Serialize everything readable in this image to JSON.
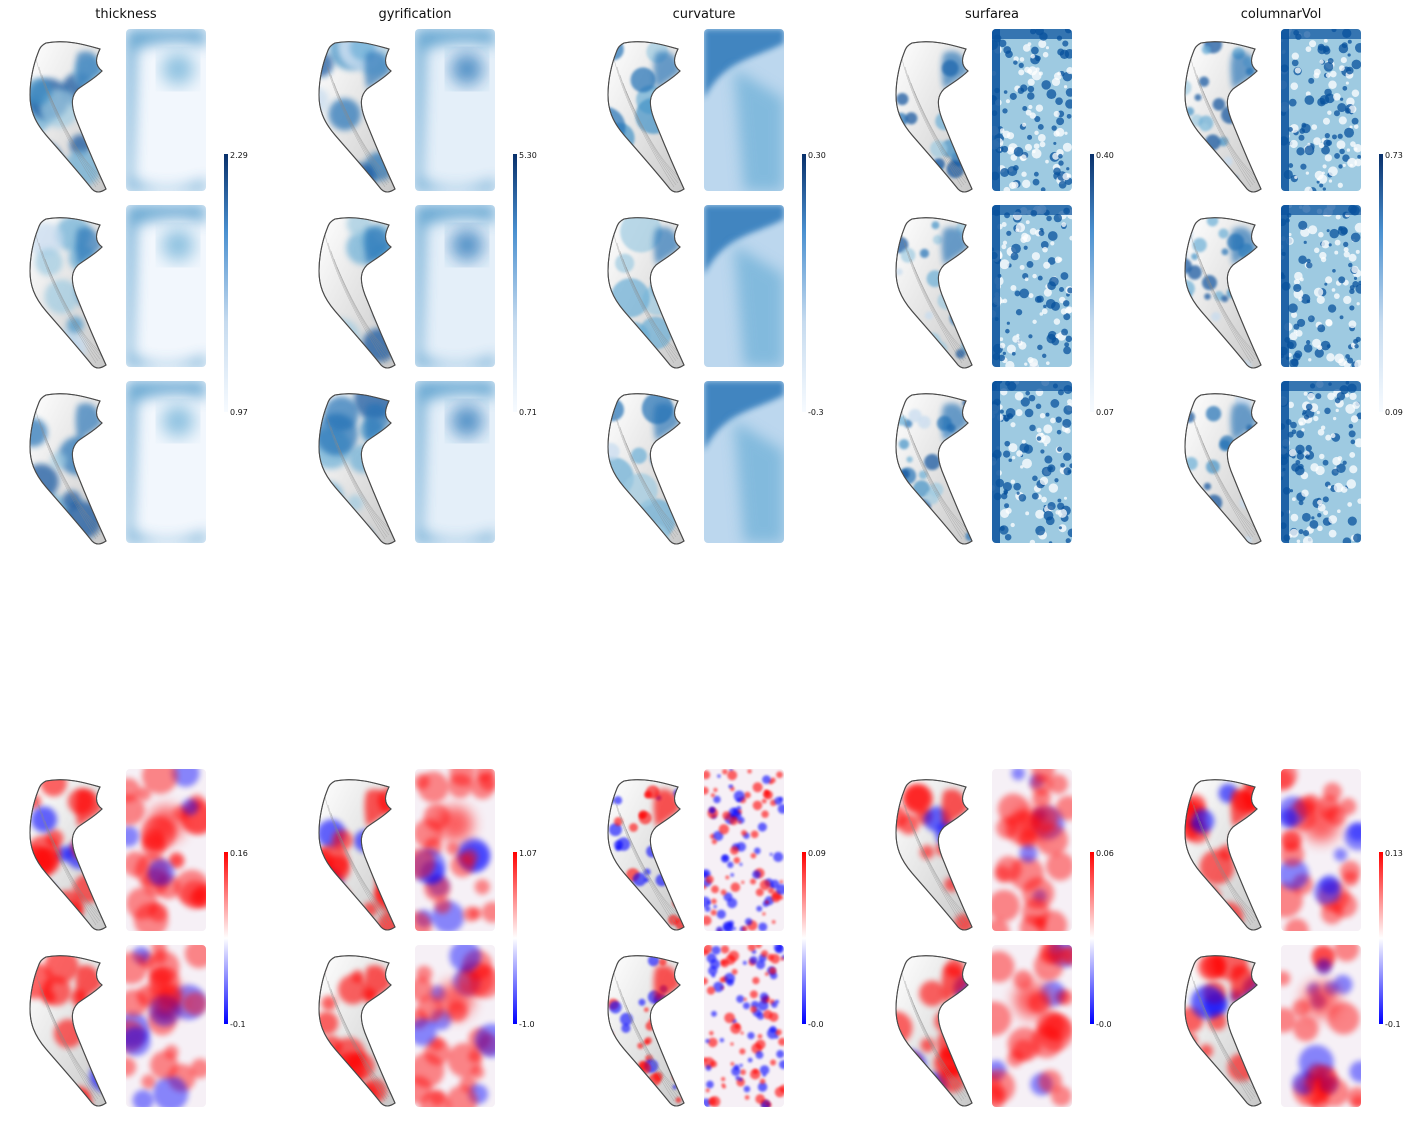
{
  "figure": {
    "columns": [
      {
        "key": "thickness",
        "title": "thickness",
        "blue_colorbar": {
          "max": "2.29",
          "min": "0.97"
        },
        "diff_colorbar": {
          "max": "0.16",
          "min": "-0.1"
        }
      },
      {
        "key": "gyrification",
        "title": "gyrification",
        "blue_colorbar": {
          "max": "5.30",
          "min": "0.71"
        },
        "diff_colorbar": {
          "max": "1.07",
          "min": "-1.0"
        }
      },
      {
        "key": "curvature",
        "title": "curvature",
        "blue_colorbar": {
          "max": "0.30",
          "min": "-0.3"
        },
        "diff_colorbar": {
          "max": "0.09",
          "min": "-0.0"
        }
      },
      {
        "key": "surfarea",
        "title": "surfarea",
        "blue_colorbar": {
          "max": "0.40",
          "min": "0.07"
        },
        "diff_colorbar": {
          "max": "0.06",
          "min": "-0.0"
        }
      },
      {
        "key": "columnarVol",
        "title": "columnarVol",
        "blue_colorbar": {
          "max": "0.73",
          "min": "0.09"
        },
        "diff_colorbar": {
          "max": "0.13",
          "min": "-0.1"
        }
      }
    ],
    "blue_rows": 3,
    "diff_rows": 2,
    "colors": {
      "blue_high": "#08306b",
      "blue_mid": "#4a90d0",
      "blue_low": "#f7fbff",
      "red_high": "#ff0000",
      "red_low": "#0000ff",
      "neutral": "#ffffff",
      "surface_gray": "#8a8a8a"
    },
    "icons": {
      "surface": "hippocampus-3d-surface",
      "flatmap": "unfolded-flatmap"
    }
  }
}
